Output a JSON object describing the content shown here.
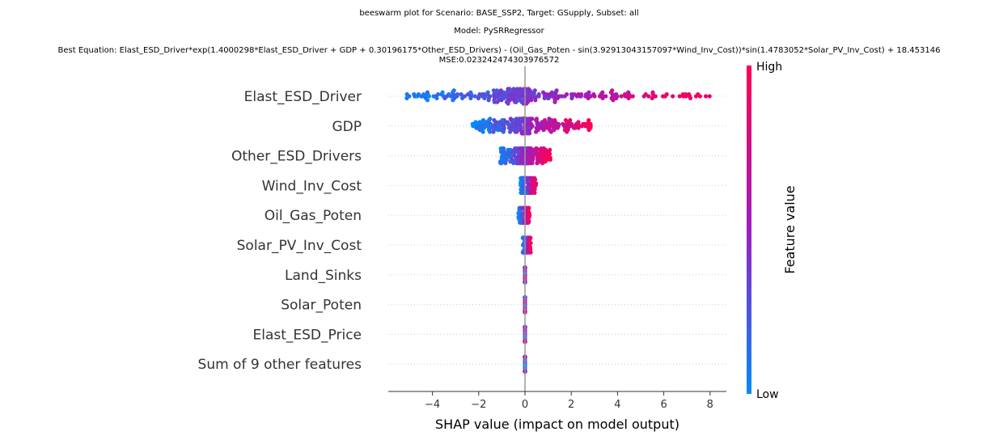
{
  "chart_data": {
    "type": "scatter",
    "subtype": "beeswarm",
    "title_lines": [
      "beeswarm plot for Scenario: BASE_SSP2, Target: GSupply, Subset: all",
      "Model: PySRRegressor",
      "Best Equation: Elast_ESD_Driver*exp(1.4000298*Elast_ESD_Driver + GDP + 0.30196175*Other_ESD_Drivers) - (Oil_Gas_Poten - sin(3.92913043157097*Wind_Inv_Cost))*sin(1.4783052*Solar_PV_Inv_Cost) + 18.453146",
      "MSE:0.023242474303976572"
    ],
    "xlabel": "SHAP value (impact on model output)",
    "xlim": [
      -5.8,
      8.8
    ],
    "xticks": [
      -4,
      -2,
      0,
      2,
      4,
      6,
      8
    ],
    "xtick_labels": [
      "−4",
      "−2",
      "0",
      "2",
      "4",
      "6",
      "8"
    ],
    "features": [
      {
        "name": "Elast_ESD_Driver",
        "shap_min": -5.3,
        "shap_max": 8.1
      },
      {
        "name": "GDP",
        "shap_min": -2.3,
        "shap_max": 2.9
      },
      {
        "name": "Other_ESD_Drivers",
        "shap_min": -1.1,
        "shap_max": 1.1
      },
      {
        "name": "Wind_Inv_Cost",
        "shap_min": -0.2,
        "shap_max": 0.5
      },
      {
        "name": "Oil_Gas_Poten",
        "shap_min": -0.3,
        "shap_max": 0.2
      },
      {
        "name": "Solar_PV_Inv_Cost",
        "shap_min": -0.1,
        "shap_max": 0.25
      },
      {
        "name": "Land_Sinks",
        "shap_min": 0,
        "shap_max": 0
      },
      {
        "name": "Solar_Poten",
        "shap_min": 0,
        "shap_max": 0
      },
      {
        "name": "Elast_ESD_Price",
        "shap_min": 0,
        "shap_max": 0
      },
      {
        "name": "Sum of 9 other features",
        "shap_min": 0,
        "shap_max": 0
      }
    ],
    "colorbar": {
      "label": "Feature value",
      "high": "High",
      "low": "Low",
      "color_low": "#008bfb",
      "color_high": "#ff0052",
      "color_mid": "#9b1fc0"
    },
    "grid": false
  }
}
